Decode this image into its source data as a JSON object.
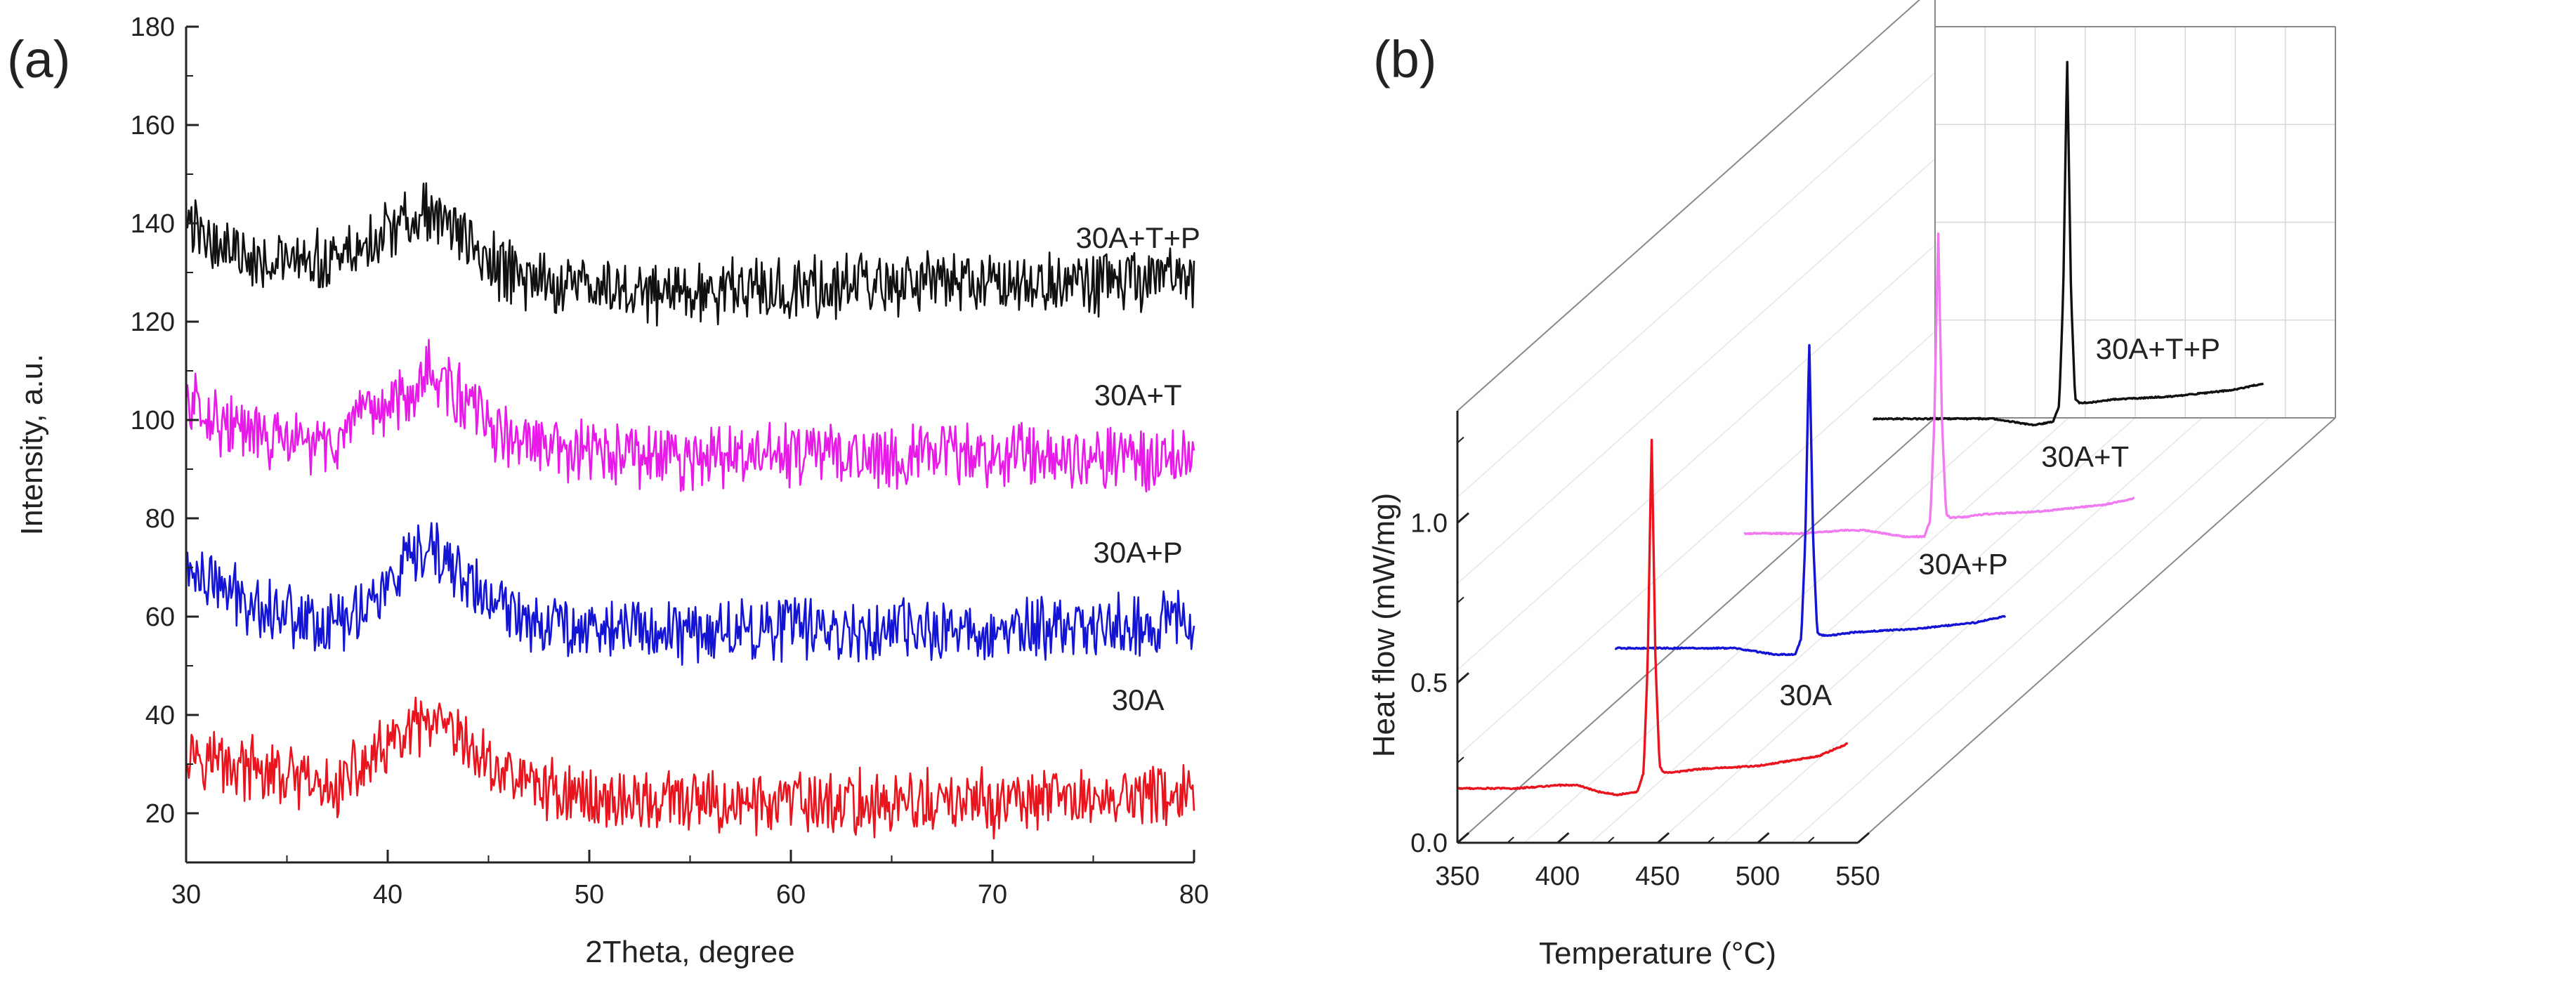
{
  "chart_data": [
    {
      "type": "line",
      "panel_label": "(a)",
      "title": "",
      "xlabel": "2Theta, degree",
      "ylabel": "Intensity, a.u.",
      "xlim": [
        30,
        80
      ],
      "ylim": [
        10,
        180
      ],
      "x_ticks": [
        "30",
        "40",
        "50",
        "60",
        "70",
        "80"
      ],
      "y_ticks": [
        "20",
        "40",
        "60",
        "80",
        "100",
        "120",
        "140",
        "160",
        "180"
      ],
      "grid": false,
      "legend": "inline labels, right side",
      "series": [
        {
          "name": "30A",
          "color": "#e8141e",
          "label_x": 76,
          "label_y": 41,
          "x": [
            30,
            32,
            34,
            36,
            37,
            38,
            40,
            41,
            42,
            43,
            44,
            45,
            46,
            48,
            50,
            55,
            60,
            65,
            70,
            75,
            80
          ],
          "y": [
            34,
            30,
            28,
            26,
            24,
            27,
            33,
            36,
            38,
            36,
            33,
            30,
            28,
            25,
            23,
            22,
            22,
            22,
            22,
            23,
            24
          ]
        },
        {
          "name": "30A+P",
          "color": "#1414d4",
          "label_x": 76,
          "label_y": 71,
          "x": [
            30,
            32,
            34,
            36,
            37,
            38,
            40,
            41,
            42,
            43,
            44,
            45,
            46,
            48,
            50,
            55,
            60,
            65,
            70,
            75,
            80
          ],
          "y": [
            70,
            65,
            62,
            60,
            58,
            60,
            66,
            70,
            73,
            71,
            67,
            63,
            61,
            59,
            58,
            57,
            58,
            57,
            57,
            58,
            59
          ]
        },
        {
          "name": "30A+T",
          "color": "#e81ae8",
          "label_x": 76,
          "label_y": 103,
          "x": [
            30,
            32,
            34,
            36,
            37,
            38,
            40,
            41,
            42,
            43,
            44,
            45,
            46,
            48,
            50,
            55,
            60,
            65,
            70,
            75,
            80
          ],
          "y": [
            104,
            99,
            96,
            95,
            95,
            97,
            103,
            106,
            110,
            107,
            103,
            99,
            96,
            94,
            93,
            92,
            93,
            93,
            93,
            93,
            92
          ]
        },
        {
          "name": "30A+T+P",
          "color": "#111111",
          "label_x": 76,
          "label_y": 135,
          "x": [
            30,
            32,
            34,
            36,
            37,
            38,
            40,
            41,
            42,
            43,
            44,
            45,
            46,
            48,
            50,
            55,
            60,
            65,
            70,
            75,
            80
          ],
          "y": [
            140,
            135,
            133,
            131,
            132,
            134,
            138,
            141,
            142,
            140,
            136,
            132,
            130,
            128,
            127,
            126,
            127,
            127,
            128,
            128,
            128
          ]
        }
      ]
    },
    {
      "type": "line",
      "panel_label": "(b)",
      "title": "",
      "xlabel": "Temperature (°C)",
      "ylabel": "Heat flow (mW/mg)",
      "xlim": [
        350,
        550
      ],
      "ylim": [
        0.0,
        1.35
      ],
      "x_ticks": [
        "350",
        "400",
        "450",
        "500",
        "550"
      ],
      "y_ticks": [
        "0.0",
        "0.5",
        "1.0"
      ],
      "grid": true,
      "projection": "3d-waterfall",
      "legend": "inline labels, right side",
      "series": [
        {
          "name": "30A",
          "color": "#e8141e",
          "depth": 0,
          "x": [
            350,
            380,
            400,
            410,
            420,
            430,
            440,
            443,
            445,
            447,
            449,
            451,
            453,
            458,
            470,
            500,
            530,
            545
          ],
          "y": [
            0.17,
            0.17,
            0.18,
            0.18,
            0.16,
            0.15,
            0.16,
            0.22,
            0.55,
            1.27,
            0.55,
            0.24,
            0.22,
            0.22,
            0.23,
            0.24,
            0.27,
            0.31
          ]
        },
        {
          "name": "30A+P",
          "color": "#1414d4",
          "depth": 1,
          "x": [
            350,
            380,
            400,
            410,
            420,
            430,
            440,
            443,
            445,
            447,
            449,
            451,
            453,
            458,
            470,
            500,
            530,
            545
          ],
          "y": [
            0.17,
            0.17,
            0.17,
            0.17,
            0.16,
            0.15,
            0.15,
            0.2,
            0.5,
            1.13,
            0.5,
            0.22,
            0.21,
            0.21,
            0.22,
            0.23,
            0.25,
            0.27
          ]
        },
        {
          "name": "30A+T",
          "color": "#f07af0",
          "depth": 2,
          "x": [
            350,
            380,
            400,
            410,
            420,
            430,
            440,
            443,
            445,
            447,
            449,
            451,
            453,
            458,
            470,
            500,
            530,
            545
          ],
          "y": [
            0.17,
            0.17,
            0.18,
            0.18,
            0.17,
            0.16,
            0.16,
            0.21,
            0.5,
            1.12,
            0.5,
            0.23,
            0.22,
            0.22,
            0.23,
            0.24,
            0.26,
            0.28
          ]
        },
        {
          "name": "30A+T+P",
          "color": "#111111",
          "depth": 3,
          "x": [
            350,
            380,
            400,
            410,
            420,
            430,
            440,
            443,
            445,
            447,
            449,
            451,
            453,
            458,
            470,
            500,
            530,
            545
          ],
          "y": [
            0.17,
            0.17,
            0.17,
            0.17,
            0.16,
            0.15,
            0.16,
            0.21,
            0.55,
            1.3,
            0.55,
            0.23,
            0.22,
            0.22,
            0.23,
            0.24,
            0.26,
            0.28
          ]
        }
      ]
    }
  ]
}
